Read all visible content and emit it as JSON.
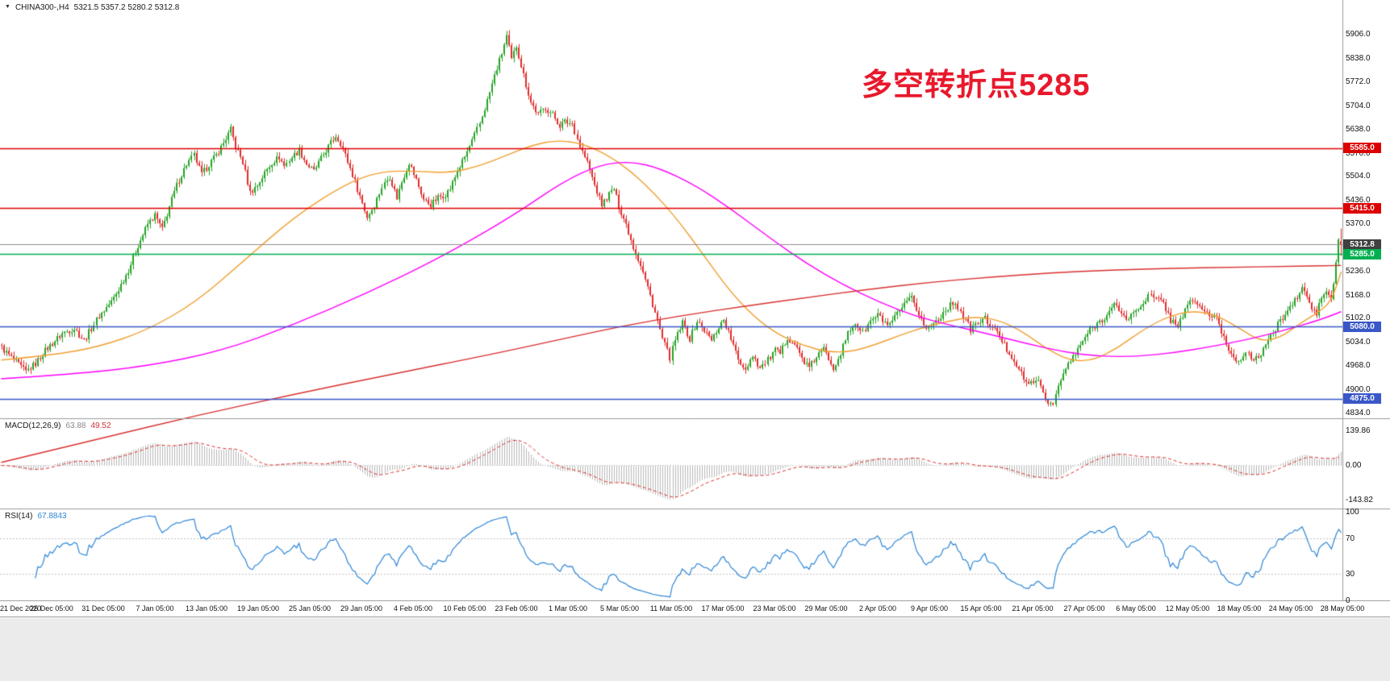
{
  "header": {
    "symbol_period": "CHINA300-,H4",
    "ohlc": "5321.5 5357.2 5280.2 5312.8"
  },
  "annotation": {
    "text": "多空转折点5285",
    "color": "#e8192c"
  },
  "macd_label": {
    "name": "MACD(12,26,9)",
    "main": "63.88",
    "signal": "49.52"
  },
  "rsi_label": {
    "name": "RSI(14)",
    "value": "67.8843"
  },
  "chart_data": {
    "type": "candlestick",
    "symbol": "CHINA300-",
    "timeframe": "H4",
    "current_bar": {
      "open": 5321.5,
      "high": 5357.2,
      "low": 5280.2,
      "close": 5312.8
    },
    "candle_count": 550,
    "price_axis": {
      "min": 4834.0,
      "max": 5906.0,
      "ticks": [
        5906,
        5838,
        5772,
        5704,
        5638,
        5570,
        5504,
        5436,
        5370,
        5302,
        5236,
        5168,
        5102,
        5034,
        4968,
        4900,
        4834
      ]
    },
    "time_axis": [
      "21 Dec 2020",
      "25 Dec 05:00",
      "31 Dec 05:00",
      "7 Jan 05:00",
      "13 Jan 05:00",
      "19 Jan 05:00",
      "25 Jan 05:00",
      "29 Jan 05:00",
      "4 Feb 05:00",
      "10 Feb 05:00",
      "23 Feb 05:00",
      "1 Mar 05:00",
      "5 Mar 05:00",
      "11 Mar 05:00",
      "17 Mar 05:00",
      "23 Mar 05:00",
      "29 Mar 05:00",
      "2 Apr 05:00",
      "9 Apr 05:00",
      "15 Apr 05:00",
      "21 Apr 05:00",
      "27 Apr 05:00",
      "6 May 05:00",
      "12 May 05:00",
      "18 May 05:00",
      "24 May 05:00",
      "28 May 05:00"
    ],
    "levels": [
      {
        "value": 5585.0,
        "label": "5585.0",
        "color": "#dd0000",
        "type": "resistance"
      },
      {
        "value": 5415.0,
        "label": "5415.0",
        "color": "#dd0000",
        "type": "resistance"
      },
      {
        "value": 5312.8,
        "label": "5312.8",
        "color": "#404040",
        "type": "current-price"
      },
      {
        "value": 5285.0,
        "label": "5285.0",
        "color": "#00b050",
        "type": "pivot"
      },
      {
        "value": 5080.0,
        "label": "5080.0",
        "color": "#3a57c8",
        "type": "support"
      },
      {
        "value": 4875.0,
        "label": "4875.0",
        "color": "#3a57c8",
        "type": "support"
      }
    ],
    "close_path": [
      [
        0,
        5020
      ],
      [
        5,
        4985
      ],
      [
        10,
        4952
      ],
      [
        14,
        4975
      ],
      [
        18,
        5012
      ],
      [
        25,
        5060
      ],
      [
        30,
        5075
      ],
      [
        34,
        5040
      ],
      [
        40,
        5110
      ],
      [
        45,
        5150
      ],
      [
        48,
        5185
      ],
      [
        52,
        5240
      ],
      [
        56,
        5310
      ],
      [
        60,
        5370
      ],
      [
        63,
        5395
      ],
      [
        66,
        5355
      ],
      [
        69,
        5420
      ],
      [
        72,
        5480
      ],
      [
        76,
        5540
      ],
      [
        79,
        5565
      ],
      [
        82,
        5510
      ],
      [
        85,
        5540
      ],
      [
        88,
        5565
      ],
      [
        91,
        5600
      ],
      [
        94,
        5638
      ],
      [
        96,
        5590
      ],
      [
        99,
        5545
      ],
      [
        102,
        5460
      ],
      [
        105,
        5480
      ],
      [
        108,
        5515
      ],
      [
        111,
        5545
      ],
      [
        114,
        5560
      ],
      [
        116,
        5535
      ],
      [
        119,
        5560
      ],
      [
        122,
        5580
      ],
      [
        125,
        5540
      ],
      [
        128,
        5520
      ],
      [
        131,
        5555
      ],
      [
        134,
        5590
      ],
      [
        137,
        5620
      ],
      [
        139,
        5600
      ],
      [
        141,
        5565
      ],
      [
        144,
        5510
      ],
      [
        147,
        5450
      ],
      [
        150,
        5390
      ],
      [
        153,
        5425
      ],
      [
        156,
        5475
      ],
      [
        159,
        5505
      ],
      [
        162,
        5445
      ],
      [
        164,
        5490
      ],
      [
        167,
        5545
      ],
      [
        170,
        5495
      ],
      [
        173,
        5440
      ],
      [
        176,
        5425
      ],
      [
        179,
        5445
      ],
      [
        182,
        5455
      ],
      [
        184,
        5470
      ],
      [
        187,
        5520
      ],
      [
        190,
        5560
      ],
      [
        193,
        5605
      ],
      [
        196,
        5655
      ],
      [
        199,
        5720
      ],
      [
        202,
        5790
      ],
      [
        205,
        5855
      ],
      [
        207,
        5902
      ],
      [
        209,
        5835
      ],
      [
        211,
        5875
      ],
      [
        213,
        5820
      ],
      [
        215,
        5765
      ],
      [
        217,
        5715
      ],
      [
        220,
        5680
      ],
      [
        223,
        5700
      ],
      [
        226,
        5680
      ],
      [
        229,
        5650
      ],
      [
        231,
        5660
      ],
      [
        234,
        5655
      ],
      [
        237,
        5590
      ],
      [
        240,
        5545
      ],
      [
        243,
        5480
      ],
      [
        246,
        5425
      ],
      [
        249,
        5455
      ],
      [
        251,
        5470
      ],
      [
        253,
        5420
      ],
      [
        256,
        5370
      ],
      [
        259,
        5305
      ],
      [
        262,
        5255
      ],
      [
        265,
        5190
      ],
      [
        268,
        5120
      ],
      [
        271,
        5045
      ],
      [
        274,
        4992
      ],
      [
        276,
        5040
      ],
      [
        279,
        5090
      ],
      [
        282,
        5045
      ],
      [
        285,
        5095
      ],
      [
        288,
        5070
      ],
      [
        291,
        5040
      ],
      [
        294,
        5080
      ],
      [
        296,
        5100
      ],
      [
        299,
        5045
      ],
      [
        302,
        4985
      ],
      [
        305,
        4960
      ],
      [
        308,
        5000
      ],
      [
        311,
        4962
      ],
      [
        314,
        4985
      ],
      [
        317,
        5012
      ],
      [
        319,
        5002
      ],
      [
        322,
        5050
      ],
      [
        325,
        5030
      ],
      [
        328,
        4990
      ],
      [
        331,
        4962
      ],
      [
        334,
        4995
      ],
      [
        337,
        5015
      ],
      [
        341,
        4965
      ],
      [
        344,
        5005
      ],
      [
        347,
        5060
      ],
      [
        350,
        5090
      ],
      [
        353,
        5062
      ],
      [
        356,
        5095
      ],
      [
        359,
        5112
      ],
      [
        362,
        5090
      ],
      [
        364,
        5082
      ],
      [
        367,
        5115
      ],
      [
        370,
        5140
      ],
      [
        373,
        5160
      ],
      [
        376,
        5115
      ],
      [
        379,
        5072
      ],
      [
        382,
        5090
      ],
      [
        385,
        5110
      ],
      [
        388,
        5135
      ],
      [
        391,
        5150
      ],
      [
        394,
        5108
      ],
      [
        397,
        5072
      ],
      [
        400,
        5090
      ],
      [
        403,
        5102
      ],
      [
        406,
        5078
      ],
      [
        409,
        5052
      ],
      [
        412,
        5015
      ],
      [
        415,
        4985
      ],
      [
        418,
        4945
      ],
      [
        421,
        4912
      ],
      [
        424,
        4935
      ],
      [
        427,
        4890
      ],
      [
        429,
        4862
      ],
      [
        431,
        4868
      ],
      [
        434,
        4928
      ],
      [
        437,
        4975
      ],
      [
        440,
        5000
      ],
      [
        443,
        5040
      ],
      [
        446,
        5070
      ],
      [
        450,
        5095
      ],
      [
        453,
        5112
      ],
      [
        456,
        5140
      ],
      [
        459,
        5122
      ],
      [
        461,
        5098
      ],
      [
        464,
        5118
      ],
      [
        467,
        5140
      ],
      [
        470,
        5168
      ],
      [
        473,
        5158
      ],
      [
        476,
        5148
      ],
      [
        479,
        5098
      ],
      [
        482,
        5085
      ],
      [
        485,
        5125
      ],
      [
        488,
        5158
      ],
      [
        491,
        5135
      ],
      [
        494,
        5118
      ],
      [
        498,
        5100
      ],
      [
        501,
        5048
      ],
      [
        504,
        5000
      ],
      [
        507,
        4982
      ],
      [
        510,
        5012
      ],
      [
        513,
        4978
      ],
      [
        516,
        5005
      ],
      [
        518,
        5032
      ],
      [
        521,
        5060
      ],
      [
        524,
        5098
      ],
      [
        527,
        5125
      ],
      [
        530,
        5152
      ],
      [
        533,
        5188
      ],
      [
        535,
        5165
      ],
      [
        537,
        5128
      ],
      [
        539,
        5118
      ],
      [
        541,
        5162
      ],
      [
        543,
        5180
      ],
      [
        545,
        5155
      ],
      [
        546,
        5200
      ],
      [
        547,
        5262
      ],
      [
        548,
        5325
      ],
      [
        549,
        5313
      ]
    ],
    "moving_averages": [
      {
        "name": "fast-ma",
        "color": "#f0a030",
        "path": [
          [
            0,
            4985
          ],
          [
            20,
            4998
          ],
          [
            40,
            5022
          ],
          [
            60,
            5070
          ],
          [
            80,
            5150
          ],
          [
            100,
            5270
          ],
          [
            120,
            5390
          ],
          [
            140,
            5480
          ],
          [
            155,
            5520
          ],
          [
            170,
            5520
          ],
          [
            184,
            5515
          ],
          [
            196,
            5535
          ],
          [
            207,
            5565
          ],
          [
            218,
            5595
          ],
          [
            228,
            5608
          ],
          [
            238,
            5598
          ],
          [
            248,
            5568
          ],
          [
            258,
            5520
          ],
          [
            268,
            5455
          ],
          [
            278,
            5375
          ],
          [
            288,
            5280
          ],
          [
            298,
            5185
          ],
          [
            308,
            5110
          ],
          [
            318,
            5058
          ],
          [
            328,
            5028
          ],
          [
            338,
            5008
          ],
          [
            348,
            5008
          ],
          [
            358,
            5028
          ],
          [
            368,
            5055
          ],
          [
            378,
            5078
          ],
          [
            388,
            5095
          ],
          [
            398,
            5108
          ],
          [
            408,
            5100
          ],
          [
            418,
            5068
          ],
          [
            428,
            5018
          ],
          [
            438,
            4982
          ],
          [
            448,
            4985
          ],
          [
            458,
            5022
          ],
          [
            468,
            5072
          ],
          [
            478,
            5108
          ],
          [
            488,
            5125
          ],
          [
            498,
            5112
          ],
          [
            508,
            5072
          ],
          [
            516,
            5038
          ],
          [
            524,
            5048
          ],
          [
            532,
            5088
          ],
          [
            540,
            5122
          ],
          [
            545,
            5152
          ],
          [
            549,
            5235
          ]
        ]
      },
      {
        "name": "mid-ma",
        "color": "#ff00ff",
        "path": [
          [
            0,
            4932
          ],
          [
            30,
            4945
          ],
          [
            60,
            4968
          ],
          [
            90,
            5010
          ],
          [
            120,
            5085
          ],
          [
            150,
            5175
          ],
          [
            180,
            5275
          ],
          [
            210,
            5395
          ],
          [
            230,
            5490
          ],
          [
            245,
            5538
          ],
          [
            258,
            5548
          ],
          [
            270,
            5528
          ],
          [
            285,
            5478
          ],
          [
            300,
            5408
          ],
          [
            315,
            5330
          ],
          [
            330,
            5258
          ],
          [
            345,
            5198
          ],
          [
            360,
            5148
          ],
          [
            375,
            5108
          ],
          [
            390,
            5082
          ],
          [
            405,
            5058
          ],
          [
            420,
            5032
          ],
          [
            435,
            5008
          ],
          [
            450,
            4995
          ],
          [
            465,
            4995
          ],
          [
            480,
            5005
          ],
          [
            495,
            5022
          ],
          [
            510,
            5042
          ],
          [
            525,
            5068
          ],
          [
            540,
            5098
          ],
          [
            549,
            5122
          ]
        ]
      },
      {
        "name": "slow-ma",
        "color": "#d93030",
        "path": [
          [
            0,
            4695
          ],
          [
            40,
            4762
          ],
          [
            80,
            4828
          ],
          [
            120,
            4888
          ],
          [
            160,
            4945
          ],
          [
            200,
            5000
          ],
          [
            230,
            5045
          ],
          [
            255,
            5082
          ],
          [
            280,
            5112
          ],
          [
            305,
            5138
          ],
          [
            330,
            5162
          ],
          [
            355,
            5185
          ],
          [
            380,
            5205
          ],
          [
            405,
            5220
          ],
          [
            430,
            5232
          ],
          [
            455,
            5240
          ],
          [
            480,
            5245
          ],
          [
            505,
            5248
          ],
          [
            525,
            5250
          ],
          [
            549,
            5253
          ]
        ]
      }
    ],
    "macd": {
      "label": "MACD(12,26,9)",
      "current_values": [
        63.88,
        49.52
      ],
      "params": {
        "fast": 12,
        "slow": 26,
        "signal": 9
      },
      "axis_ticks": [
        {
          "value": 139.86,
          "label": "139.86"
        },
        {
          "value": 0,
          "label": "0.00"
        },
        {
          "value": -143.82,
          "label": "-143.82"
        }
      ]
    },
    "rsi": {
      "label": "RSI(14)",
      "current_value": 67.8843,
      "period": 14,
      "level_lines": [
        70,
        30
      ],
      "axis_ticks": [
        100,
        70,
        30,
        0
      ]
    },
    "colors": {
      "up": "#23a323",
      "down": "#e12b2b",
      "hist": "#b8b8b8",
      "signal": "#e03030",
      "rsi": "#2e86d7",
      "grid": "#c4c4c4",
      "separator": "#9a9a9a",
      "current_line": "#909090"
    }
  }
}
